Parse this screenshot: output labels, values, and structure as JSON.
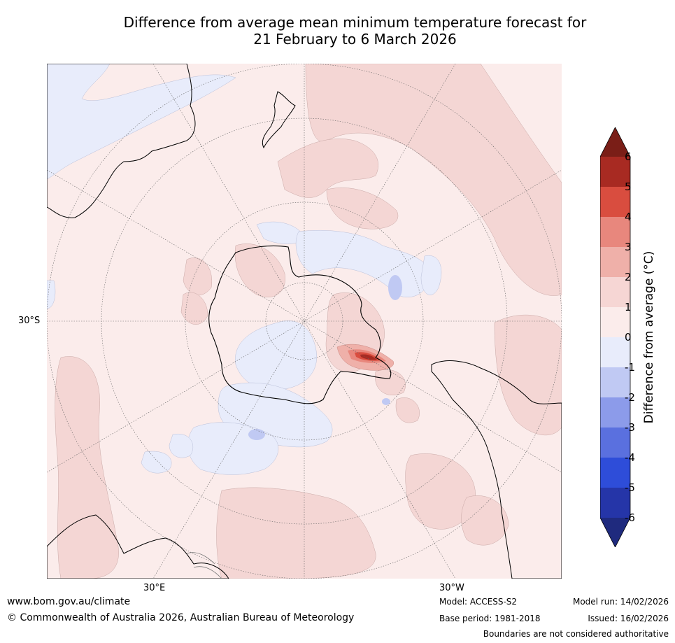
{
  "title": {
    "line1": "Difference from average mean minimum temperature forecast for",
    "line2": "21 February to 6 March 2026"
  },
  "map": {
    "projection": "south-polar-stereographic",
    "labels": {
      "lat_30s": "30°S",
      "lon_30e": "30°E",
      "lon_30w": "30°W"
    }
  },
  "colorbar": {
    "title": "Difference from average (°C)",
    "ticks": [
      "6",
      "5",
      "4",
      "3",
      "2",
      "1",
      "0",
      "-1",
      "-2",
      "-3",
      "-4",
      "-5",
      "-6"
    ],
    "colors": {
      "gt6": "#7a1e17",
      "5_6": "#a82a22",
      "4_5": "#d94d3f",
      "3_4": "#e8877d",
      "2_3": "#efb0a9",
      "1_2": "#f6d6d4",
      "0_1": "#fbeceb",
      "m1_0": "#e8ecfb",
      "m2_m1": "#c0c9f3",
      "m3_m2": "#8c9bea",
      "m4_m3": "#5a70df",
      "m5_m4": "#2e4dd9",
      "m6_m5": "#2535a8",
      "lt_m6": "#1f2a7e"
    }
  },
  "footer": {
    "website": "www.bom.gov.au/climate",
    "copyright": "© Commonwealth of Australia 2026, Australian Bureau of Meteorology",
    "model": "Model: ACCESS-S2",
    "base_period": "Base period: 1981-2018",
    "model_run": "Model run: 14/02/2026",
    "issued": "Issued: 16/02/2026",
    "disclaimer": "Boundaries are not considered authoritative"
  }
}
